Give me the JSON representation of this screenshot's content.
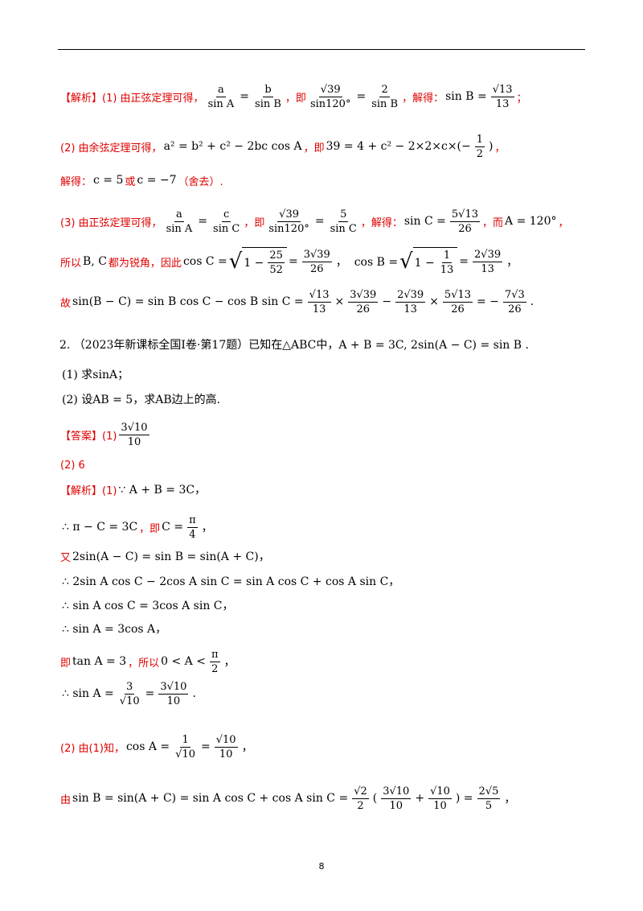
{
  "lines": [
    {
      "parts": [
        {
          "r": "【解析】(1) 由正弦定理可得，"
        },
        {
          "f": [
            "a",
            "sin A"
          ]
        },
        {
          "k": "="
        },
        {
          "f": [
            "b",
            "sin B"
          ]
        },
        {
          "r": "，即"
        },
        {
          "f": [
            "√39",
            "sin120°"
          ]
        },
        {
          "k": "="
        },
        {
          "f": [
            "2",
            "sin B"
          ]
        },
        {
          "r": "，解得："
        },
        {
          "k": "sin B ="
        },
        {
          "f": [
            "√13",
            "13"
          ]
        },
        {
          "r": "；"
        }
      ]
    },
    {
      "parts": [
        {
          "r": "(2) 由余弦定理可得，"
        },
        {
          "k": "a² = b² + c² − 2bc cos A"
        },
        {
          "r": "，即"
        },
        {
          "k": "39 = 4 + c² − 2×2×c×(−"
        },
        {
          "f": [
            "1",
            "2"
          ]
        },
        {
          "k": ")"
        },
        {
          "r": "，"
        }
      ]
    },
    {
      "parts": [
        {
          "r": "解得："
        },
        {
          "k": "c = 5"
        },
        {
          "r": "或"
        },
        {
          "k": "c = −7"
        },
        {
          "r": "（舍去）."
        }
      ]
    },
    {
      "parts": [
        {
          "r": "(3) 由正弦定理可得，"
        },
        {
          "f": [
            "a",
            "sin A"
          ]
        },
        {
          "k": "="
        },
        {
          "f": [
            "c",
            "sin C"
          ]
        },
        {
          "r": "，即"
        },
        {
          "f": [
            "√39",
            "sin120°"
          ]
        },
        {
          "k": "="
        },
        {
          "f": [
            "5",
            "sin C"
          ]
        },
        {
          "r": "，解得："
        },
        {
          "k": "sin C ="
        },
        {
          "f": [
            "5√13",
            "26"
          ]
        },
        {
          "r": "，而"
        },
        {
          "k": "A = 120°"
        },
        {
          "r": "，"
        }
      ]
    },
    {
      "parts": [
        {
          "r": "所以"
        },
        {
          "k": "B, C"
        },
        {
          "r": "都为锐角，因此"
        },
        {
          "k": "cos C ="
        },
        {
          "sqrt": [
            {
              "k": "1 −"
            },
            {
              "f": [
                "25",
                "52"
              ]
            }
          ]
        },
        {
          "k": "="
        },
        {
          "f": [
            "3√39",
            "26"
          ]
        },
        {
          "k": "，  cos B ="
        },
        {
          "sqrt": [
            {
              "k": "1 −"
            },
            {
              "f": [
                "1",
                "13"
              ]
            }
          ]
        },
        {
          "k": "="
        },
        {
          "f": [
            "2√39",
            "13"
          ]
        },
        {
          "k": "，"
        }
      ]
    },
    {
      "parts": [
        {
          "r": "故"
        },
        {
          "k": "sin(B − C) = sin B cos C − cos B sin C ="
        },
        {
          "f": [
            "√13",
            "13"
          ]
        },
        {
          "k": "×"
        },
        {
          "f": [
            "3√39",
            "26"
          ]
        },
        {
          "k": "−"
        },
        {
          "f": [
            "2√39",
            "13"
          ]
        },
        {
          "k": "×"
        },
        {
          "f": [
            "5√13",
            "26"
          ]
        },
        {
          "k": "= −"
        },
        {
          "f": [
            "7√3",
            "26"
          ]
        },
        {
          "k": "."
        }
      ]
    },
    {
      "parts": [
        {
          "k": "2. （2023年新课标全国Ⅰ卷·第17题）已知在△ABC中，A + B = 3C, 2sin(A − C) = sin B ."
        }
      ]
    },
    {
      "parts": [
        {
          "k": "(1) 求sinA；"
        }
      ]
    },
    {
      "parts": [
        {
          "k": "(2) 设AB = 5，求AB边上的高."
        }
      ]
    },
    {
      "parts": [
        {
          "r": "【答案】(1)"
        },
        {
          "f": [
            "3√10",
            "10"
          ]
        }
      ]
    },
    {
      "parts": [
        {
          "r": "(2) 6"
        }
      ]
    },
    {
      "parts": [
        {
          "r": "【解析】(1)"
        },
        {
          "k": "∵ A + B = 3C，"
        }
      ]
    },
    {
      "parts": [
        {
          "k": "∴ π − C = 3C"
        },
        {
          "r": "，即"
        },
        {
          "k": "C ="
        },
        {
          "f": [
            "π",
            "4"
          ]
        },
        {
          "k": "，"
        }
      ]
    },
    {
      "parts": [
        {
          "r": "又"
        },
        {
          "k": "2sin(A − C) = sin B = sin(A + C)，"
        }
      ]
    },
    {
      "parts": [
        {
          "k": "∴ 2sin A cos C − 2cos A sin C = sin A cos C + cos A sin C，"
        }
      ]
    },
    {
      "parts": [
        {
          "k": "∴ sin A cos C = 3cos A sin C，"
        }
      ]
    },
    {
      "parts": [
        {
          "k": "∴ sin A = 3cos A，"
        }
      ]
    },
    {
      "parts": [
        {
          "r": "即"
        },
        {
          "k": "tan A = 3"
        },
        {
          "r": "，所以"
        },
        {
          "k": "0 < A <"
        },
        {
          "f": [
            "π",
            "2"
          ]
        },
        {
          "k": "，"
        }
      ]
    },
    {
      "parts": [
        {
          "k": "∴ sin A ="
        },
        {
          "f": [
            "3",
            "√10"
          ]
        },
        {
          "k": "="
        },
        {
          "f": [
            "3√10",
            "10"
          ]
        },
        {
          "k": "."
        }
      ]
    },
    {
      "parts": [
        {
          "r": "(2) 由(1)知，"
        },
        {
          "k": "cos A ="
        },
        {
          "f": [
            "1",
            "√10"
          ]
        },
        {
          "k": "="
        },
        {
          "f": [
            "√10",
            "10"
          ]
        },
        {
          "k": "，"
        }
      ]
    },
    {
      "parts": [
        {
          "r": "由"
        },
        {
          "k": "sin B = sin(A + C) = sin A cos C + cos A sin C ="
        },
        {
          "f": [
            "√2",
            "2"
          ]
        },
        {
          "k": "("
        },
        {
          "f": [
            "3√10",
            "10"
          ]
        },
        {
          "k": "+"
        },
        {
          "f": [
            "√10",
            "10"
          ]
        },
        {
          "k": ") ="
        },
        {
          "f": [
            "2√5",
            "5"
          ]
        },
        {
          "k": "，"
        }
      ]
    }
  ],
  "page_number": "8"
}
